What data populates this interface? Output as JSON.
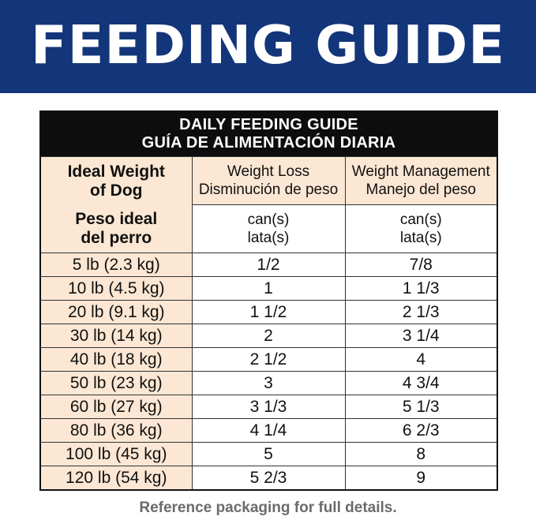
{
  "banner": {
    "title": "FEEDING GUIDE"
  },
  "table": {
    "title_en": "DAILY FEEDING GUIDE",
    "title_es": "GUÍA DE ALIMENTACIÓN DIARIA",
    "col1_en_line1": "Ideal Weight",
    "col1_en_line2": "of Dog",
    "col1_es_line1": "Peso ideal",
    "col1_es_line2": "del perro",
    "col2_en": "Weight Loss",
    "col2_es": "Disminución de peso",
    "col3_en": "Weight Management",
    "col3_es": "Manejo del peso",
    "unit_en": "can(s)",
    "unit_es": "lata(s)",
    "rows": [
      {
        "weight": "5 lb (2.3 kg)",
        "loss": "1/2",
        "manage": "7/8"
      },
      {
        "weight": "10 lb (4.5 kg)",
        "loss": "1",
        "manage": "1 1/3"
      },
      {
        "weight": "20 lb (9.1 kg)",
        "loss": "1 1/2",
        "manage": "2 1/3"
      },
      {
        "weight": "30 lb (14 kg)",
        "loss": "2",
        "manage": "3 1/4"
      },
      {
        "weight": "40 lb (18 kg)",
        "loss": "2 1/2",
        "manage": "4"
      },
      {
        "weight": "50 lb (23 kg)",
        "loss": "3",
        "manage": "4 3/4"
      },
      {
        "weight": "60 lb (27 kg)",
        "loss": "3 1/3",
        "manage": "5 1/3"
      },
      {
        "weight": "80 lb (36 kg)",
        "loss": "4 1/4",
        "manage": "6 2/3"
      },
      {
        "weight": "100 lb (45 kg)",
        "loss": "5",
        "manage": "8"
      },
      {
        "weight": "120 lb (54 kg)",
        "loss": "5 2/3",
        "manage": "9"
      }
    ]
  },
  "footnote": "Reference packaging for full details.",
  "colors": {
    "banner": "#13357a",
    "header_black": "#0d0d0d",
    "cream": "#fbe7d3",
    "footnote": "#6b6b6b"
  }
}
